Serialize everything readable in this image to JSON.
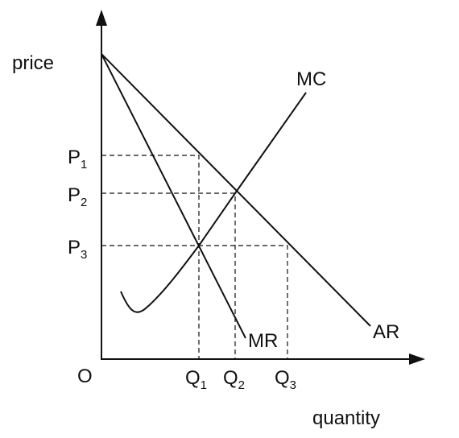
{
  "axes": {
    "y_label": "price",
    "x_label": "quantity",
    "origin": "O"
  },
  "price_levels": [
    {
      "letter": "P",
      "sub": "1"
    },
    {
      "letter": "P",
      "sub": "2"
    },
    {
      "letter": "P",
      "sub": "3"
    }
  ],
  "quantity_levels": [
    {
      "letter": "Q",
      "sub": "1"
    },
    {
      "letter": "Q",
      "sub": "2"
    },
    {
      "letter": "Q",
      "sub": "3"
    }
  ],
  "curves": {
    "mc": "MC",
    "mr": "MR",
    "ar": "AR"
  }
}
